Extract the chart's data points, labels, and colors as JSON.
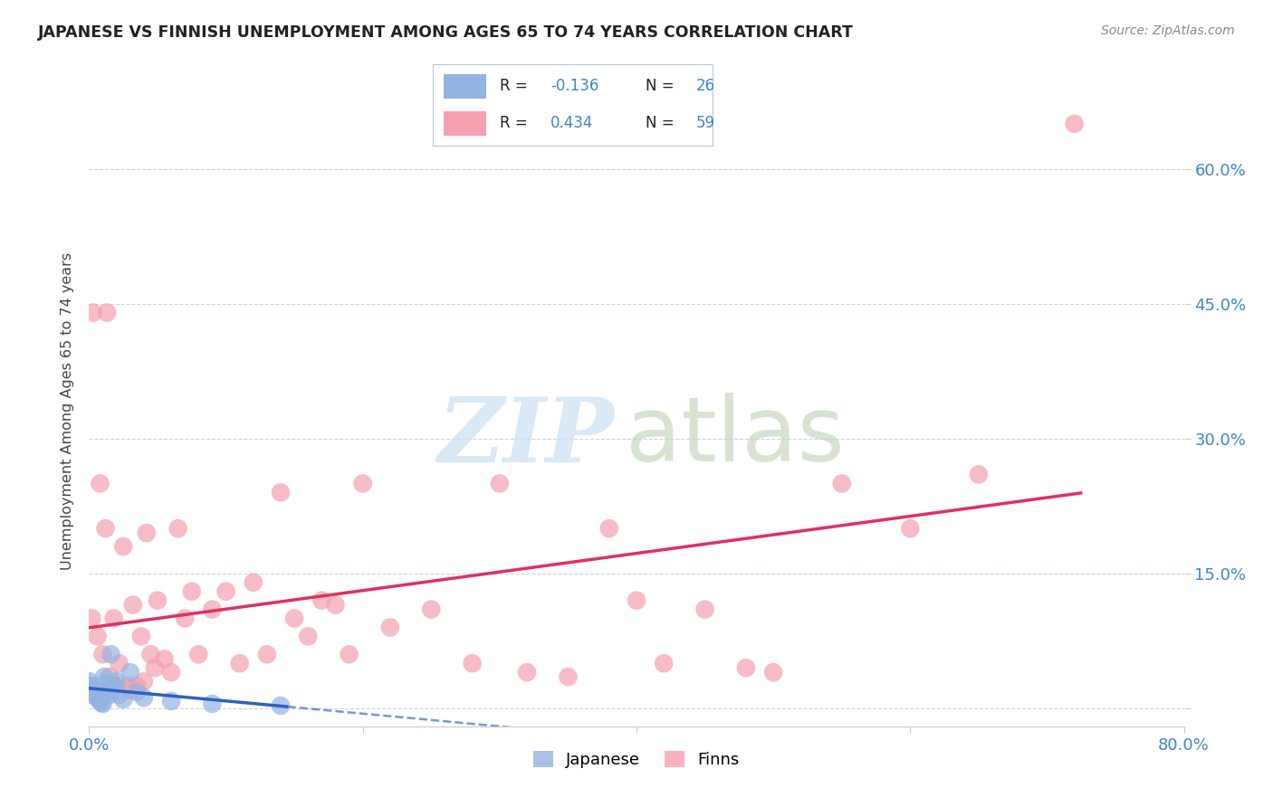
{
  "title": "JAPANESE VS FINNISH UNEMPLOYMENT AMONG AGES 65 TO 74 YEARS CORRELATION CHART",
  "source": "Source: ZipAtlas.com",
  "ylabel": "Unemployment Among Ages 65 to 74 years",
  "xlim": [
    0.0,
    0.8
  ],
  "ylim": [
    -0.02,
    0.68
  ],
  "xtick_positions": [
    0.0,
    0.2,
    0.4,
    0.6,
    0.8
  ],
  "xticklabels": [
    "0.0%",
    "",
    "",
    "",
    "80.0%"
  ],
  "ytick_positions": [
    0.0,
    0.15,
    0.3,
    0.45,
    0.6
  ],
  "right_ytick_labels": [
    "",
    "15.0%",
    "30.0%",
    "45.0%",
    "60.0%"
  ],
  "japanese_color": "#92b4e3",
  "finns_color": "#f4a0b0",
  "japanese_line_color": "#3060c0",
  "finns_line_color": "#e03060",
  "legend_R_japanese": "-0.136",
  "legend_N_japanese": "26",
  "legend_R_finns": "0.434",
  "legend_N_finns": "59",
  "japanese_x": [
    0.0,
    0.002,
    0.003,
    0.004,
    0.005,
    0.006,
    0.007,
    0.008,
    0.009,
    0.01,
    0.011,
    0.012,
    0.013,
    0.014,
    0.015,
    0.016,
    0.018,
    0.02,
    0.022,
    0.025,
    0.03,
    0.035,
    0.04,
    0.06,
    0.09,
    0.14
  ],
  "japanese_y": [
    0.03,
    0.025,
    0.02,
    0.018,
    0.015,
    0.012,
    0.01,
    0.008,
    0.006,
    0.005,
    0.035,
    0.028,
    0.022,
    0.018,
    0.015,
    0.06,
    0.025,
    0.03,
    0.015,
    0.01,
    0.04,
    0.018,
    0.012,
    0.008,
    0.005,
    0.003
  ],
  "finns_x": [
    0.0,
    0.002,
    0.003,
    0.005,
    0.006,
    0.008,
    0.01,
    0.012,
    0.013,
    0.015,
    0.016,
    0.018,
    0.02,
    0.022,
    0.025,
    0.028,
    0.03,
    0.032,
    0.035,
    0.038,
    0.04,
    0.042,
    0.045,
    0.048,
    0.05,
    0.055,
    0.06,
    0.065,
    0.07,
    0.075,
    0.08,
    0.09,
    0.1,
    0.11,
    0.12,
    0.13,
    0.14,
    0.15,
    0.16,
    0.17,
    0.18,
    0.19,
    0.2,
    0.22,
    0.25,
    0.28,
    0.3,
    0.32,
    0.35,
    0.38,
    0.4,
    0.42,
    0.45,
    0.48,
    0.5,
    0.55,
    0.6,
    0.65,
    0.72
  ],
  "finns_y": [
    0.015,
    0.1,
    0.44,
    0.02,
    0.08,
    0.25,
    0.06,
    0.2,
    0.44,
    0.035,
    0.02,
    0.1,
    0.025,
    0.05,
    0.18,
    0.025,
    0.02,
    0.115,
    0.025,
    0.08,
    0.03,
    0.195,
    0.06,
    0.045,
    0.12,
    0.055,
    0.04,
    0.2,
    0.1,
    0.13,
    0.06,
    0.11,
    0.13,
    0.05,
    0.14,
    0.06,
    0.24,
    0.1,
    0.08,
    0.12,
    0.115,
    0.06,
    0.25,
    0.09,
    0.11,
    0.05,
    0.25,
    0.04,
    0.035,
    0.2,
    0.12,
    0.05,
    0.11,
    0.045,
    0.04,
    0.25,
    0.2,
    0.26,
    0.65
  ]
}
